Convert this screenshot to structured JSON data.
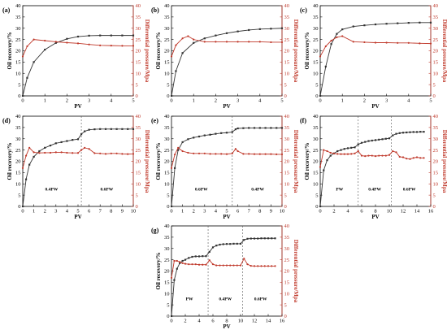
{
  "style": {
    "recovery_color": "#333333",
    "pressure_color": "#c0392b",
    "axis_color": "#000000"
  },
  "chart_data": [
    {
      "panel": "(a)",
      "type": "line",
      "xlabel": "PV",
      "ylabel": "Oil recovery/%",
      "y2label": "Differential pressure/Mpa",
      "xlim": [
        0,
        5
      ],
      "xticks": [
        0,
        1,
        2,
        3,
        4,
        5
      ],
      "ylim": [
        0,
        40
      ],
      "yticks": [
        0,
        5,
        10,
        15,
        20,
        25,
        30,
        35,
        40
      ],
      "y2lim": [
        0,
        40
      ],
      "y2ticks": [
        0,
        5,
        10,
        15,
        20,
        25,
        30,
        35,
        40
      ],
      "series": [
        {
          "role": "recovery",
          "axis": "left",
          "x": [
            0,
            0.2,
            0.5,
            1.0,
            1.5,
            2.0,
            2.5,
            3.0,
            3.5,
            4.0,
            4.5,
            5.0
          ],
          "y": [
            0,
            8,
            15,
            20.5,
            23.5,
            25.3,
            26.3,
            26.7,
            26.8,
            26.8,
            26.8,
            26.8
          ]
        },
        {
          "role": "pressure",
          "axis": "right",
          "x": [
            0,
            0.2,
            0.5,
            1.0,
            1.5,
            2.0,
            2.5,
            3.0,
            3.5,
            4.0,
            4.5,
            5.0
          ],
          "y": [
            17.5,
            22,
            25,
            24.5,
            24,
            23.6,
            23.3,
            22.8,
            22.4,
            22.3,
            22.2,
            22.2
          ]
        }
      ],
      "separators": [],
      "annotations": []
    },
    {
      "panel": "(b)",
      "type": "line",
      "xlabel": "PV",
      "ylabel": "Oil recovery/%",
      "y2label": "Differential pressure/Mpa",
      "xlim": [
        0,
        5
      ],
      "xticks": [
        0,
        1,
        2,
        3,
        4,
        5
      ],
      "ylim": [
        0,
        40
      ],
      "yticks": [
        0,
        5,
        10,
        15,
        20,
        25,
        30,
        35,
        40
      ],
      "y2lim": [
        0,
        40
      ],
      "y2ticks": [
        0,
        5,
        10,
        15,
        20,
        25,
        30,
        35,
        40
      ],
      "series": [
        {
          "role": "recovery",
          "axis": "left",
          "x": [
            0,
            0.2,
            0.5,
            1.0,
            1.5,
            2.0,
            2.5,
            3.0,
            3.5,
            4.0,
            4.5,
            5.0
          ],
          "y": [
            0,
            11,
            19,
            23.5,
            25.5,
            26.8,
            27.8,
            28.6,
            29.2,
            29.6,
            29.8,
            30
          ]
        },
        {
          "role": "pressure",
          "axis": "right",
          "x": [
            0,
            0.2,
            0.5,
            0.75,
            1.0,
            1.5,
            2.0,
            2.5,
            3.0,
            3.5,
            4.0,
            4.5,
            5.0
          ],
          "y": [
            17.5,
            22.5,
            25.5,
            26.5,
            25,
            24,
            24,
            24,
            24,
            24,
            24,
            23.8,
            23.8
          ]
        }
      ],
      "separators": [],
      "annotations": []
    },
    {
      "panel": "(c)",
      "type": "line",
      "xlabel": "PV",
      "ylabel": "Oil recovery/%",
      "y2label": "Differential pressure/Mpa",
      "xlim": [
        0,
        5
      ],
      "xticks": [
        0,
        1,
        2,
        3,
        4,
        5
      ],
      "ylim": [
        0,
        40
      ],
      "yticks": [
        0,
        5,
        10,
        15,
        20,
        25,
        30,
        35,
        40
      ],
      "y2lim": [
        0,
        40
      ],
      "y2ticks": [
        0,
        5,
        10,
        15,
        20,
        25,
        30,
        35,
        40
      ],
      "series": [
        {
          "role": "recovery",
          "axis": "left",
          "x": [
            0,
            0.25,
            0.5,
            0.75,
            1.0,
            1.5,
            2.0,
            2.5,
            3.0,
            3.5,
            4.0,
            4.5,
            5.0
          ],
          "y": [
            0,
            13,
            23,
            27.5,
            29.5,
            30.8,
            31.3,
            31.7,
            32,
            32.2,
            32.4,
            32.5,
            32.5
          ]
        },
        {
          "role": "pressure",
          "axis": "right",
          "x": [
            0,
            0.25,
            0.5,
            0.75,
            1.0,
            1.5,
            2.0,
            2.5,
            3.0,
            3.5,
            4.0,
            4.5,
            5.0
          ],
          "y": [
            17.5,
            22,
            24.5,
            26,
            26.5,
            24,
            23.8,
            23.6,
            23.6,
            23.5,
            23.5,
            23.3,
            23.2
          ]
        }
      ],
      "separators": [],
      "annotations": []
    },
    {
      "panel": "(d)",
      "type": "line",
      "xlabel": "PV",
      "ylabel": "Oil recovery/%",
      "y2label": "Differential pressure/Mpa",
      "xlim": [
        0,
        10
      ],
      "xticks": [
        0,
        1,
        2,
        3,
        4,
        5,
        6,
        7,
        8,
        9,
        10
      ],
      "ylim": [
        0,
        40
      ],
      "yticks": [
        0,
        5,
        10,
        15,
        20,
        25,
        30,
        35,
        40
      ],
      "y2lim": [
        0,
        40
      ],
      "y2ticks": [
        0,
        5,
        10,
        15,
        20,
        25,
        30,
        35,
        40
      ],
      "series": [
        {
          "role": "recovery",
          "axis": "left",
          "x": [
            0,
            0.3,
            0.6,
            1.0,
            1.5,
            2,
            2.5,
            3,
            3.5,
            4,
            4.5,
            5,
            5.3,
            5.6,
            6,
            6.5,
            7,
            7.5,
            8,
            8.5,
            9,
            9.5,
            10
          ],
          "y": [
            0,
            12,
            18.5,
            22,
            24.5,
            26,
            27,
            28,
            28.5,
            29,
            29.5,
            29.8,
            32,
            33.3,
            34,
            34.2,
            34.3,
            34.3,
            34.3,
            34.3,
            34.3,
            34.3,
            34.3
          ]
        },
        {
          "role": "pressure",
          "axis": "right",
          "x": [
            0,
            0.3,
            0.6,
            1.0,
            1.5,
            2,
            2.5,
            3,
            3.5,
            4,
            4.5,
            5,
            5.3,
            5.6,
            6,
            6.5,
            7,
            7.5,
            8,
            8.5,
            9,
            9.5,
            10
          ],
          "y": [
            17,
            22.5,
            26,
            24,
            23.7,
            23.8,
            23.8,
            24,
            24,
            23.8,
            23.7,
            23.7,
            25,
            26,
            25.5,
            23.6,
            23.5,
            23.3,
            23.5,
            23.5,
            23.3,
            23.2,
            23.3
          ]
        }
      ],
      "separators": [
        5.3
      ],
      "annotations": [
        {
          "text": "0.4PW",
          "x": 2.6,
          "y": 7
        },
        {
          "text": "0.6PW",
          "x": 7.6,
          "y": 7
        }
      ]
    },
    {
      "panel": "(e)",
      "type": "line",
      "xlabel": "PV",
      "ylabel": "Oil recovery/%",
      "y2label": "Differential pressure/Mpa",
      "xlim": [
        0,
        10
      ],
      "xticks": [
        0,
        1,
        2,
        3,
        4,
        5,
        6,
        7,
        8,
        9,
        10
      ],
      "ylim": [
        0,
        40
      ],
      "yticks": [
        0,
        5,
        10,
        15,
        20,
        25,
        30,
        35,
        40
      ],
      "y2lim": [
        0,
        40
      ],
      "y2ticks": [
        0,
        5,
        10,
        15,
        20,
        25,
        30,
        35,
        40
      ],
      "series": [
        {
          "role": "recovery",
          "axis": "left",
          "x": [
            0,
            0.3,
            0.6,
            1.0,
            1.5,
            2,
            2.5,
            3,
            3.5,
            4,
            4.5,
            5,
            5.5,
            5.8,
            6,
            6.5,
            7,
            7.5,
            8,
            8.5,
            9,
            9.5,
            10
          ],
          "y": [
            0,
            17,
            25,
            28.5,
            29.8,
            30.5,
            31,
            31.5,
            31.8,
            32.2,
            32.5,
            32.7,
            33,
            34.2,
            34.6,
            34.7,
            34.8,
            34.8,
            34.8,
            34.8,
            34.8,
            34.8,
            34.8
          ]
        },
        {
          "role": "pressure",
          "axis": "right",
          "x": [
            0,
            0.3,
            0.6,
            1.0,
            1.5,
            2,
            2.5,
            3,
            3.5,
            4,
            4.5,
            5,
            5.5,
            5.8,
            6,
            6.5,
            7,
            7.5,
            8,
            8.5,
            9,
            9.5,
            10
          ],
          "y": [
            17,
            23,
            26,
            24.5,
            23.8,
            23.5,
            23.5,
            23.5,
            23.3,
            23.3,
            23.3,
            23.2,
            23.5,
            25.5,
            24.5,
            23.3,
            23.3,
            23.2,
            23.2,
            23.2,
            23.2,
            23.1,
            23.1
          ]
        }
      ],
      "separators": [
        5.5
      ],
      "annotations": [
        {
          "text": "0.6PW",
          "x": 2.7,
          "y": 7
        },
        {
          "text": "0.4PW",
          "x": 7.8,
          "y": 7
        }
      ]
    },
    {
      "panel": "(f)",
      "type": "line",
      "xlabel": "PV",
      "ylabel": "Oil recovery/%",
      "y2label": "Differential pressure/Mpa",
      "xlim": [
        0,
        16
      ],
      "xticks": [
        0,
        2,
        4,
        6,
        8,
        10,
        12,
        14,
        16
      ],
      "ylim": [
        0,
        40
      ],
      "yticks": [
        0,
        5,
        10,
        15,
        20,
        25,
        30,
        35,
        40
      ],
      "y2lim": [
        0,
        40
      ],
      "y2ticks": [
        0,
        5,
        10,
        15,
        20,
        25,
        30,
        35,
        40
      ],
      "series": [
        {
          "role": "recovery",
          "axis": "left",
          "x": [
            0,
            0.5,
            1,
            1.5,
            2,
            2.5,
            3,
            3.5,
            4,
            4.5,
            5,
            5.5,
            6,
            6.5,
            7,
            7.5,
            8,
            8.5,
            9,
            9.5,
            10,
            10.5,
            11,
            11.5,
            12,
            12.5,
            13,
            13.5,
            14,
            14.5,
            15
          ],
          "y": [
            0,
            16,
            20.5,
            22.5,
            23.5,
            24.5,
            25,
            25.5,
            25.8,
            26,
            26.2,
            27.5,
            28.2,
            28.6,
            29,
            29.2,
            29.4,
            29.6,
            29.8,
            30,
            30.2,
            31.5,
            32.2,
            32.5,
            32.7,
            32.8,
            32.9,
            33,
            33,
            33.1,
            33.1
          ]
        },
        {
          "role": "pressure",
          "axis": "right",
          "x": [
            0,
            0.5,
            1,
            1.5,
            2,
            2.5,
            3,
            3.5,
            4,
            4.5,
            5,
            5.5,
            6,
            6.5,
            7,
            7.5,
            8,
            8.5,
            9,
            9.5,
            10,
            10.5,
            11,
            11.5,
            12,
            12.5,
            13,
            13.5,
            14,
            14.5,
            15
          ],
          "y": [
            17.5,
            25,
            24.5,
            23.8,
            23.5,
            23.3,
            23.2,
            23.2,
            23.2,
            23.3,
            23.5,
            24.5,
            22.5,
            22.3,
            22.5,
            22.5,
            22.3,
            22.5,
            22.5,
            22.5,
            22.8,
            24.5,
            24,
            22,
            21.8,
            21.2,
            21,
            21.5,
            21.8,
            21.5,
            21.5
          ]
        }
      ],
      "separators": [
        5.5,
        10.3
      ],
      "annotations": [
        {
          "text": "PW",
          "x": 2.8,
          "y": 7
        },
        {
          "text": "0.4PW",
          "x": 7.9,
          "y": 7
        },
        {
          "text": "0.6PW",
          "x": 12.9,
          "y": 7
        }
      ]
    },
    {
      "panel": "(g)",
      "type": "line",
      "xlabel": "PV",
      "ylabel": "Oil recovery/%",
      "y2label": "Differential pressure/Mpa",
      "xlim": [
        0,
        16
      ],
      "xticks": [
        0,
        2,
        4,
        6,
        8,
        10,
        12,
        14,
        16
      ],
      "ylim": [
        0,
        40
      ],
      "yticks": [
        0,
        5,
        10,
        15,
        20,
        25,
        30,
        35,
        40
      ],
      "y2lim": [
        0,
        40
      ],
      "y2ticks": [
        0,
        5,
        10,
        15,
        20,
        25,
        30,
        35,
        40
      ],
      "series": [
        {
          "role": "recovery",
          "axis": "left",
          "x": [
            0,
            0.4,
            0.8,
            1.2,
            1.6,
            2,
            2.5,
            3,
            3.5,
            4,
            4.5,
            5,
            5.5,
            6,
            6.5,
            7,
            7.5,
            8,
            8.5,
            9,
            9.5,
            10,
            10.5,
            11,
            11.5,
            12,
            12.5,
            13,
            13.5,
            14,
            14.5,
            15
          ],
          "y": [
            0,
            16,
            21,
            23.5,
            24.5,
            25,
            25.8,
            26.3,
            26.5,
            26.5,
            26.6,
            26.6,
            28.5,
            30.5,
            31.3,
            31.7,
            31.9,
            32,
            32,
            32.1,
            32.1,
            32.1,
            33.8,
            34.3,
            34.4,
            34.4,
            34.4,
            34.5,
            34.5,
            34.5,
            34.5,
            34.5
          ]
        },
        {
          "role": "pressure",
          "axis": "right",
          "x": [
            0,
            0.4,
            0.8,
            1.2,
            1.6,
            2,
            2.5,
            3,
            3.5,
            4,
            4.5,
            5,
            5.5,
            6,
            6.5,
            7,
            7.5,
            8,
            8.5,
            9,
            9.5,
            10,
            10.5,
            11,
            11.5,
            12,
            12.5,
            13,
            13.5,
            14,
            14.5,
            15
          ],
          "y": [
            17,
            24.5,
            24.5,
            24,
            23.5,
            23.2,
            23,
            23,
            23,
            22.8,
            22.8,
            22.8,
            24.8,
            23,
            22.5,
            22.5,
            22.5,
            22.5,
            22.5,
            22.5,
            22.5,
            22.5,
            25.5,
            23,
            22.3,
            22.2,
            22.2,
            22.2,
            22.2,
            22.2,
            22.2,
            22.2
          ]
        }
      ],
      "separators": [
        5.3,
        10.3
      ],
      "annotations": [
        {
          "text": "PW",
          "x": 2.6,
          "y": 7
        },
        {
          "text": "0.4PW",
          "x": 7.8,
          "y": 7
        },
        {
          "text": "0.6PW",
          "x": 12.9,
          "y": 7
        }
      ]
    }
  ]
}
